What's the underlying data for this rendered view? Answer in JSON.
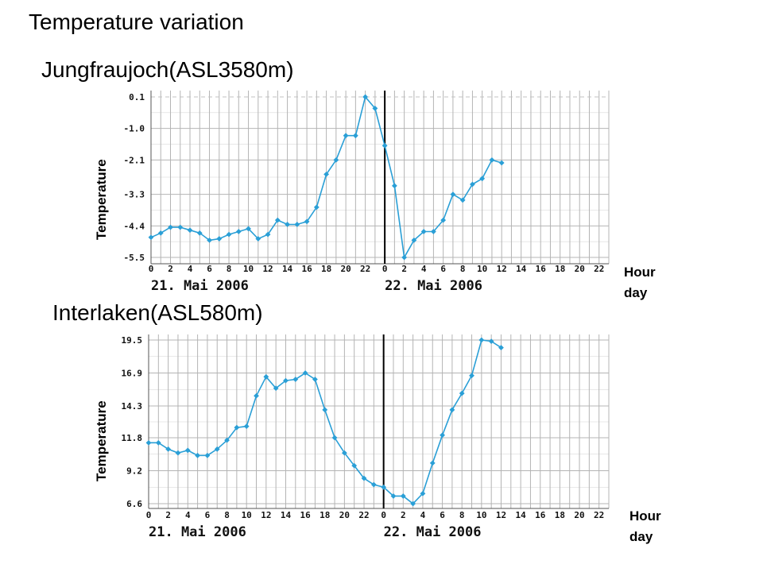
{
  "page": {
    "title": "Temperature variation",
    "unit_hour": "Hour",
    "unit_day": "day"
  },
  "colors": {
    "line": "#2a9fd6",
    "grid": "#b4b4b4",
    "dashed": "#c0c0c0",
    "divider": "#000000",
    "text": "#000000"
  },
  "chart_data": [
    {
      "type": "line",
      "title": "Jungfraujoch(ASL3580m)",
      "ylabel": "Temperature",
      "xlabel": "Hour day",
      "x_tick_labels": [
        "0",
        "2",
        "4",
        "6",
        "8",
        "10",
        "12",
        "14",
        "16",
        "18",
        "20",
        "22",
        "0",
        "2",
        "4",
        "6",
        "8",
        "10",
        "12",
        "14",
        "16",
        "18",
        "20",
        "22"
      ],
      "date_labels": [
        "21. Mai 2006",
        "22. Mai 2006"
      ],
      "y_ticks": [
        "0.1",
        "-1.0",
        "-2.1",
        "-3.3",
        "-4.4",
        "-5.5"
      ],
      "ylim": [
        -5.5,
        0.1
      ],
      "dashed_reference": 0.1,
      "x_range_hours": [
        0,
        47
      ],
      "series": [
        {
          "x": [
            0,
            1,
            2,
            3,
            4,
            5,
            6,
            7,
            8,
            9,
            10,
            11,
            12,
            13,
            14,
            15,
            16,
            17,
            18,
            19,
            20,
            21,
            22,
            23,
            24,
            25,
            26,
            27,
            28,
            29,
            30,
            31,
            32,
            33,
            34,
            35,
            36
          ],
          "y": [
            -4.8,
            -4.65,
            -4.45,
            -4.45,
            -4.55,
            -4.65,
            -4.9,
            -4.85,
            -4.7,
            -4.6,
            -4.5,
            -4.85,
            -4.7,
            -4.2,
            -4.35,
            -4.35,
            -4.25,
            -3.75,
            -2.6,
            -2.1,
            -1.25,
            -1.25,
            0.1,
            -0.3,
            -1.6,
            -3.0,
            -5.5,
            -4.9,
            -4.6,
            -4.6,
            -4.2,
            -3.3,
            -3.5,
            -2.95,
            -2.75,
            -2.1,
            -2.2
          ]
        }
      ]
    },
    {
      "type": "line",
      "title": "Interlaken(ASL580m)",
      "ylabel": "Temperature",
      "xlabel": "Hour day",
      "x_tick_labels": [
        "0",
        "2",
        "4",
        "6",
        "8",
        "10",
        "12",
        "14",
        "16",
        "18",
        "20",
        "22",
        "0",
        "2",
        "4",
        "6",
        "8",
        "10",
        "12",
        "14",
        "16",
        "18",
        "20",
        "22"
      ],
      "date_labels": [
        "21. Mai 2006",
        "22. Mai 2006"
      ],
      "y_ticks": [
        "19.5",
        "16.9",
        "14.3",
        "11.8",
        "9.2",
        "6.6"
      ],
      "ylim": [
        6.6,
        19.5
      ],
      "x_range_hours": [
        0,
        47
      ],
      "series": [
        {
          "x": [
            0,
            1,
            2,
            3,
            4,
            5,
            6,
            7,
            8,
            9,
            10,
            11,
            12,
            13,
            14,
            15,
            16,
            17,
            18,
            19,
            20,
            21,
            22,
            23,
            24,
            25,
            26,
            27,
            28,
            29,
            30,
            31,
            32,
            33,
            34,
            35,
            36
          ],
          "y": [
            11.4,
            11.4,
            10.9,
            10.6,
            10.8,
            10.4,
            10.4,
            10.9,
            11.6,
            12.6,
            12.7,
            15.1,
            16.6,
            15.7,
            16.3,
            16.4,
            16.9,
            16.4,
            14.0,
            11.8,
            10.6,
            9.6,
            8.6,
            8.1,
            7.9,
            7.2,
            7.2,
            6.6,
            7.4,
            9.8,
            12.0,
            14.0,
            15.3,
            16.7,
            19.5,
            19.4,
            18.9
          ]
        }
      ]
    }
  ]
}
